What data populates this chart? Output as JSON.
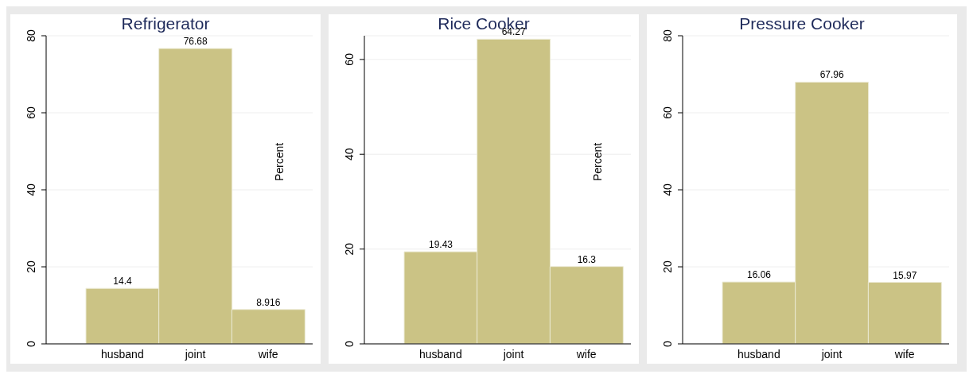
{
  "chart_data": [
    {
      "type": "bar",
      "title": "Refrigerator",
      "ylabel": "Percent",
      "categories": [
        "husband",
        "joint",
        "wife"
      ],
      "values": [
        14.4,
        76.68,
        8.916
      ],
      "color": "#cbc385",
      "ylim": [
        0,
        80
      ],
      "yticks": [
        0,
        20,
        40,
        60,
        80
      ],
      "grid": "y",
      "data_labels": true
    },
    {
      "type": "bar",
      "title": "Rice Cooker",
      "ylabel": "Percent",
      "categories": [
        "husband",
        "joint",
        "wife"
      ],
      "values": [
        19.43,
        64.27,
        16.3
      ],
      "color": "#cbc385",
      "ylim": [
        0,
        65
      ],
      "yticks": [
        0,
        20,
        40,
        60
      ],
      "grid": "y",
      "data_labels": true
    },
    {
      "type": "bar",
      "title": "Pressure Cooker",
      "categories": [
        "husband",
        "joint",
        "wife"
      ],
      "values": [
        16.06,
        67.96,
        15.97
      ],
      "color": "#cbc385",
      "ylim": [
        0,
        80
      ],
      "yticks": [
        0,
        20,
        40,
        60,
        80
      ],
      "grid": "y",
      "data_labels": true
    }
  ]
}
